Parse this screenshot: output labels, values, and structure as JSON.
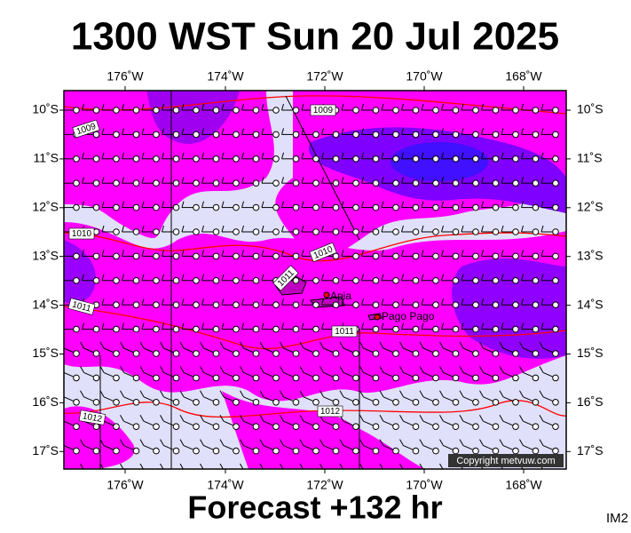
{
  "header": {
    "title": "1300 WST Sun 20 Jul 2025"
  },
  "map": {
    "lon_labels": [
      "176˚W",
      "174˚W",
      "172˚W",
      "170˚W",
      "168˚W"
    ],
    "lat_labels": [
      "10˚S",
      "11˚S",
      "12˚S",
      "13˚S",
      "14˚S",
      "15˚S",
      "16˚S",
      "17˚S"
    ],
    "isobar_labels": [
      "1009",
      "1009",
      "1010",
      "1010",
      "1011",
      "1011",
      "1011",
      "1012",
      "1012"
    ],
    "places": [
      "Apia",
      "Pago Pago"
    ],
    "copyright": "Copyright metvuw.com"
  },
  "footer": {
    "forecast": "Forecast +132 hr",
    "code": "IM2"
  }
}
